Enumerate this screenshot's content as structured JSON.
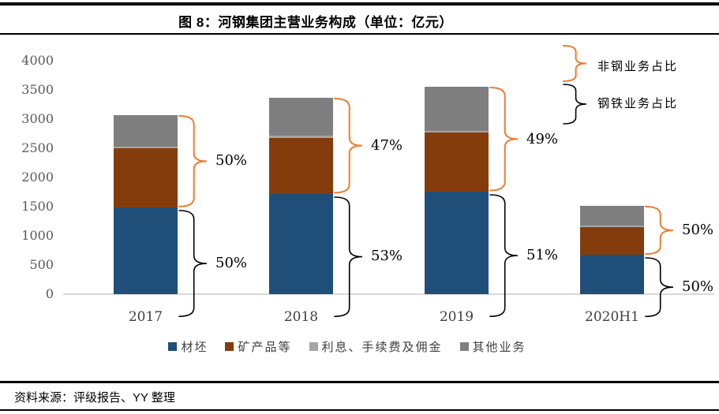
{
  "title": "图 8：河钢集团主营业务构成（单位：亿元）",
  "source": "资料来源：评级报告、YY 整理",
  "annotations": {
    "non_steel_label": "非钢业务占比",
    "steel_label": "钢铁业务占比"
  },
  "colors": {
    "blue": "#1F4E79",
    "brown": "#843C0C",
    "light_gray": "#A6A6A6",
    "dark_gray": "#7F7F7F",
    "orange_brace": "#ED7D31",
    "black_brace": "#000000",
    "axis_line": "#D9D9D9"
  },
  "chart_data": {
    "type": "bar",
    "stacked": true,
    "title": "图 8：河钢集团主营业务构成（单位：亿元）",
    "unit": "亿元",
    "categories": [
      "2017",
      "2018",
      "2019",
      "2020H1"
    ],
    "series": [
      {
        "name": "材坯",
        "color": "#1F4E79",
        "values": [
          1490,
          1720,
          1760,
          680
        ]
      },
      {
        "name": "矿产品等",
        "color": "#843C0C",
        "values": [
          1010,
          960,
          1010,
          470
        ]
      },
      {
        "name": "利息、手续费及佣金",
        "color": "#A6A6A6",
        "values": [
          30,
          30,
          30,
          20
        ]
      },
      {
        "name": "其他业务",
        "color": "#7F7F7F",
        "values": [
          540,
          650,
          750,
          350
        ]
      }
    ],
    "totals": [
      3070,
      3360,
      3550,
      1520
    ],
    "ylim": [
      0,
      4000
    ],
    "ytick_step": 500,
    "grid": false,
    "legend_position": "bottom",
    "pct_non_steel": [
      "50%",
      "47%",
      "49%",
      "50%"
    ],
    "pct_steel": [
      "50%",
      "53%",
      "51%",
      "50%"
    ]
  }
}
